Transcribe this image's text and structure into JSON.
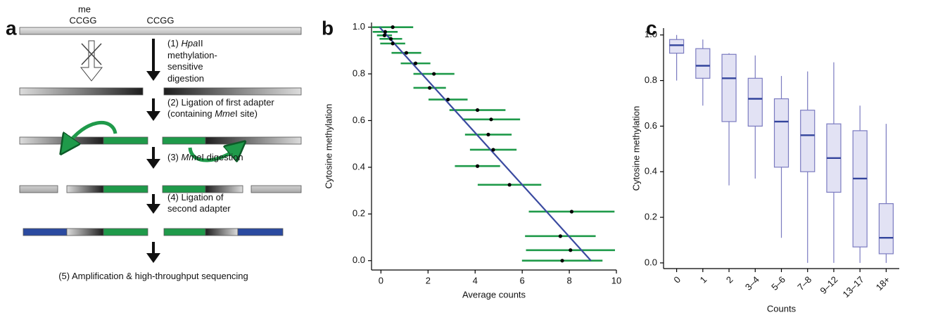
{
  "panel_labels": [
    "a",
    "b",
    "c"
  ],
  "diagram": {
    "site_labels": [
      "me",
      "CCGG",
      "CCGG"
    ],
    "steps": [
      [
        [
          "(1) ",
          "Hpa",
          "II"
        ],
        [
          "methylation-"
        ],
        [
          "sensitive"
        ],
        [
          "digestion"
        ]
      ],
      [
        [
          "(2) Ligation of first adapter"
        ],
        [
          "(containing ",
          "Mme",
          "I site)"
        ]
      ],
      [
        [
          "(3) ",
          "Mme",
          "I digestion"
        ]
      ],
      [
        [
          "(4) Ligation of"
        ],
        [
          "second adapter"
        ]
      ],
      [
        [
          "(5) Amplification & high-throughput sequencing"
        ]
      ]
    ]
  },
  "chart_data": [
    {
      "type": "scatter",
      "x_label": "Average counts",
      "y_label": "Cytosine methylation",
      "x": [
        0.5,
        0.18,
        0.15,
        0.42,
        0.5,
        1.08,
        1.47,
        2.25,
        2.07,
        2.85,
        4.1,
        4.68,
        4.56,
        4.77,
        4.1,
        5.46,
        8.1,
        7.62,
        8.05,
        7.7
      ],
      "y": [
        1.0,
        0.98,
        0.965,
        0.95,
        0.93,
        0.89,
        0.845,
        0.8,
        0.74,
        0.69,
        0.645,
        0.605,
        0.54,
        0.475,
        0.405,
        0.325,
        0.21,
        0.105,
        0.045,
        0.0
      ],
      "xerr": [
        0.87,
        0.53,
        0.32,
        0.48,
        0.53,
        0.63,
        0.63,
        0.87,
        0.69,
        0.83,
        1.19,
        1.23,
        0.99,
        0.99,
        0.96,
        1.35,
        1.82,
        1.5,
        1.89,
        1.71
      ],
      "color": "#1f9a4a",
      "point_color": "#000000",
      "fit": {
        "x": [
          -0.06,
          8.92
        ],
        "y": [
          1.0,
          0.0
        ],
        "color": "#3a4aa0"
      },
      "xlim": [
        -0.4,
        10
      ],
      "ylim": [
        -0.04,
        1.02
      ],
      "xticks": [
        0,
        2,
        4,
        6,
        8,
        10
      ],
      "yticks": [
        {
          "value": 0,
          "label": "0.0"
        },
        {
          "value": 0.2,
          "label": "0.2"
        },
        {
          "value": 0.4,
          "label": "0.4"
        },
        {
          "value": 0.6,
          "label": "0.6"
        },
        {
          "value": 0.8,
          "label": "0.8"
        },
        {
          "value": 1,
          "label": "1.0"
        }
      ]
    },
    {
      "type": "box",
      "x_label": "Counts",
      "y_label": "Cytosine methylation",
      "categories": [
        "0",
        "1",
        "2",
        "3–4",
        "5–6",
        "7–8",
        "9–12",
        "13–17",
        "18+"
      ],
      "whisker_high": [
        1.0,
        0.98,
        0.92,
        0.91,
        0.82,
        0.84,
        0.88,
        0.69,
        0.61
      ],
      "q3": [
        0.98,
        0.94,
        0.915,
        0.81,
        0.72,
        0.67,
        0.61,
        0.58,
        0.26
      ],
      "median": [
        0.955,
        0.865,
        0.81,
        0.72,
        0.62,
        0.56,
        0.46,
        0.37,
        0.11
      ],
      "q1": [
        0.92,
        0.81,
        0.62,
        0.6,
        0.42,
        0.4,
        0.31,
        0.07,
        0.04
      ],
      "whisker_low": [
        0.8,
        0.69,
        0.34,
        0.37,
        0.11,
        0.0,
        0.0,
        0.0,
        0.0
      ],
      "fill": "#e2e2f4",
      "stroke": "#7b7bc0",
      "median_color": "#33449c",
      "ylim": [
        -0.025,
        1.03
      ],
      "yticks": [
        {
          "value": 0,
          "label": "0.0"
        },
        {
          "value": 0.2,
          "label": "0.2"
        },
        {
          "value": 0.4,
          "label": "0.4"
        },
        {
          "value": 0.6,
          "label": "0.6"
        },
        {
          "value": 0.8,
          "label": "0.8"
        },
        {
          "value": 1,
          "label": "1.0"
        }
      ]
    }
  ]
}
